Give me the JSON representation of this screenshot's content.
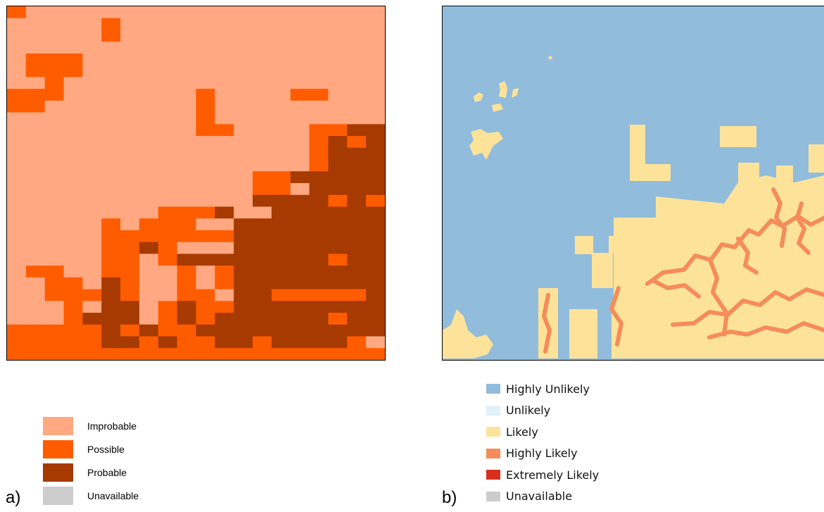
{
  "panel_a": {
    "letter": "a)",
    "colors": {
      "improbable": "#ffa882",
      "possible": "#ff5c00",
      "probable": "#a63a00",
      "unavailable": "#cccccc"
    },
    "legend": [
      {
        "label": "Improbable",
        "color": "#ffa882"
      },
      {
        "label": "Possible",
        "color": "#ff5c00"
      },
      {
        "label": "Probable",
        "color": "#a63a00"
      },
      {
        "label": "Unavailable",
        "color": "#cccccc"
      }
    ],
    "grid": [
      "10000000000000000000",
      "00000100000000000000",
      "00000100000000000000",
      "00000000000000000000",
      "01110000000000000000",
      "01110000000000000000",
      "00100000000000000000",
      "11100000001000011000",
      "11000000001000000000",
      "00000000001000000000",
      "00000000001100001122",
      "00000000000000001212",
      "00000000000000001222",
      "00000000000000001222",
      "00000000000001122222",
      "00000000000001102222",
      "00000000000002222121",
      "00000000111200222222",
      "00000101110022222222",
      "00000111111122222222",
      "00000112100022222222",
      "00000110122222222122",
      "01100110010122222222",
      "00110210010122222222",
      "00111210011022111112",
      "00010220121122222222",
      "00012220121222222122",
      "11111212112222222222",
      "11111221211221222210",
      "11111111111111111111"
    ]
  },
  "panel_b": {
    "letter": "b)",
    "colors": {
      "highly_unlikely": "#92bcdc",
      "unlikely": "#e2f1fa",
      "likely": "#fde39a",
      "highly_likely": "#f58c5a",
      "extremely_likely": "#d7301f",
      "unavailable": "#cccccc"
    },
    "legend": [
      {
        "label": "Highly Unlikely",
        "color": "#92bcdc"
      },
      {
        "label": "Unlikely",
        "color": "#e2f1fa"
      },
      {
        "label": "Likely",
        "color": "#fde39a"
      },
      {
        "label": "Highly Likely",
        "color": "#f58c5a"
      },
      {
        "label": "Extremely Likely",
        "color": "#d7301f"
      },
      {
        "label": "Unavailable",
        "color": "#cccccc"
      }
    ]
  }
}
